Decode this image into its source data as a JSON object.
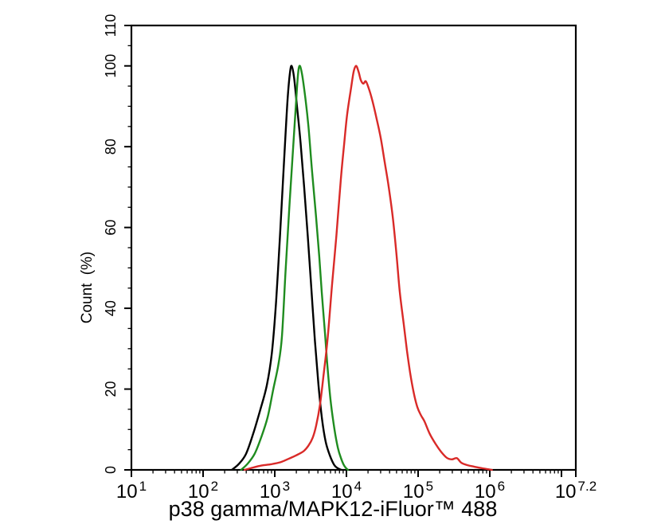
{
  "chart_data": {
    "type": "line",
    "subtype": "flow-cytometry-overlay-histogram",
    "xlabel": "p38 gamma/MAPK12-iFluor™ 488",
    "ylabel": "Count (%)",
    "x_scale": "log10",
    "xlim_log": [
      1,
      7.2
    ],
    "ylim": [
      0,
      110
    ],
    "grid": false,
    "legend": null,
    "x_ticks": [
      {
        "log": 1,
        "label": "1"
      },
      {
        "log": 2,
        "label": "2"
      },
      {
        "log": 3,
        "label": "3"
      },
      {
        "log": 4,
        "label": "4"
      },
      {
        "log": 5,
        "label": "5"
      },
      {
        "log": 6,
        "label": "6"
      },
      {
        "log": 7,
        "label": ""
      },
      {
        "log": 7.2,
        "label": "7.2"
      }
    ],
    "x_tick_base": "10",
    "x_minor_multiples": [
      2,
      3,
      4,
      5,
      6,
      7,
      8,
      9
    ],
    "y_ticks": [
      {
        "v": 0,
        "label": "0"
      },
      {
        "v": 20,
        "label": "20"
      },
      {
        "v": 40,
        "label": "40"
      },
      {
        "v": 60,
        "label": "60"
      },
      {
        "v": 80,
        "label": "80"
      },
      {
        "v": 100,
        "label": "100"
      },
      {
        "v": 110,
        "label": "110"
      }
    ],
    "y_minor_step": 5,
    "series": [
      {
        "name": "black",
        "color": "#000000",
        "peak_log10": 3.235,
        "peak_percent": 100,
        "points": [
          [
            2.4,
            0
          ],
          [
            2.5,
            1.5
          ],
          [
            2.6,
            4
          ],
          [
            2.7,
            9
          ],
          [
            2.8,
            15
          ],
          [
            2.89,
            21
          ],
          [
            2.96,
            29
          ],
          [
            3.02,
            42
          ],
          [
            3.07,
            57
          ],
          [
            3.11,
            70
          ],
          [
            3.15,
            83
          ],
          [
            3.18,
            92
          ],
          [
            3.21,
            98
          ],
          [
            3.235,
            100
          ],
          [
            3.27,
            97
          ],
          [
            3.31,
            90
          ],
          [
            3.36,
            81
          ],
          [
            3.41,
            70
          ],
          [
            3.46,
            58
          ],
          [
            3.51,
            45
          ],
          [
            3.56,
            32
          ],
          [
            3.61,
            21
          ],
          [
            3.66,
            12.5
          ],
          [
            3.71,
            7
          ],
          [
            3.77,
            3.5
          ],
          [
            3.83,
            1.2
          ],
          [
            3.88,
            0.4
          ],
          [
            3.93,
            0
          ]
        ]
      },
      {
        "name": "green",
        "color": "#1f8c1f",
        "peak_log10": 3.345,
        "peak_percent": 100,
        "points": [
          [
            2.53,
            0
          ],
          [
            2.62,
            1.5
          ],
          [
            2.72,
            4
          ],
          [
            2.81,
            8
          ],
          [
            2.9,
            13
          ],
          [
            2.98,
            20
          ],
          [
            3.05,
            26
          ],
          [
            3.1,
            33
          ],
          [
            3.15,
            49
          ],
          [
            3.2,
            64
          ],
          [
            3.25,
            78
          ],
          [
            3.29,
            89
          ],
          [
            3.32,
            97
          ],
          [
            3.345,
            100
          ],
          [
            3.38,
            98
          ],
          [
            3.42,
            93
          ],
          [
            3.47,
            85
          ],
          [
            3.52,
            74
          ],
          [
            3.574,
            63
          ],
          [
            3.62,
            53
          ],
          [
            3.656,
            44
          ],
          [
            3.7,
            34
          ],
          [
            3.733,
            26
          ],
          [
            3.78,
            17
          ],
          [
            3.833,
            10
          ],
          [
            3.88,
            5.5
          ],
          [
            3.922,
            3
          ],
          [
            3.97,
            1
          ],
          [
            4.02,
            0
          ]
        ]
      },
      {
        "name": "red",
        "color": "#d92a28",
        "peak_log10": 4.135,
        "peak_percent": 100,
        "points": [
          [
            2.58,
            0
          ],
          [
            2.7,
            0.6
          ],
          [
            2.82,
            1.1
          ],
          [
            2.95,
            1.4
          ],
          [
            3.08,
            1.9
          ],
          [
            3.2,
            2.8
          ],
          [
            3.3,
            3.6
          ],
          [
            3.4,
            4.6
          ],
          [
            3.47,
            6
          ],
          [
            3.53,
            8
          ],
          [
            3.578,
            11
          ],
          [
            3.63,
            16
          ],
          [
            3.678,
            23
          ],
          [
            3.74,
            33
          ],
          [
            3.8,
            46
          ],
          [
            3.86,
            58
          ],
          [
            3.922,
            72
          ],
          [
            3.97,
            81
          ],
          [
            4.01,
            88
          ],
          [
            4.06,
            94
          ],
          [
            4.1,
            98.5
          ],
          [
            4.135,
            100
          ],
          [
            4.17,
            98.5
          ],
          [
            4.2,
            96.5
          ],
          [
            4.235,
            95.6
          ],
          [
            4.27,
            96.2
          ],
          [
            4.31,
            94.5
          ],
          [
            4.36,
            91.5
          ],
          [
            4.42,
            87
          ],
          [
            4.48,
            82
          ],
          [
            4.535,
            76
          ],
          [
            4.59,
            70
          ],
          [
            4.65,
            62
          ],
          [
            4.7,
            53
          ],
          [
            4.744,
            44
          ],
          [
            4.8,
            36
          ],
          [
            4.845,
            29.5
          ],
          [
            4.889,
            24
          ],
          [
            4.94,
            19
          ],
          [
            4.99,
            15.5
          ],
          [
            5.04,
            13.5
          ],
          [
            5.089,
            12
          ],
          [
            5.16,
            9
          ],
          [
            5.244,
            6.4
          ],
          [
            5.32,
            4.5
          ],
          [
            5.4,
            3
          ],
          [
            5.47,
            2.6
          ],
          [
            5.54,
            2.9
          ],
          [
            5.6,
            1.8
          ],
          [
            5.68,
            1.2
          ],
          [
            5.78,
            0.8
          ],
          [
            5.9,
            0.4
          ],
          [
            6.03,
            0
          ]
        ]
      }
    ]
  }
}
